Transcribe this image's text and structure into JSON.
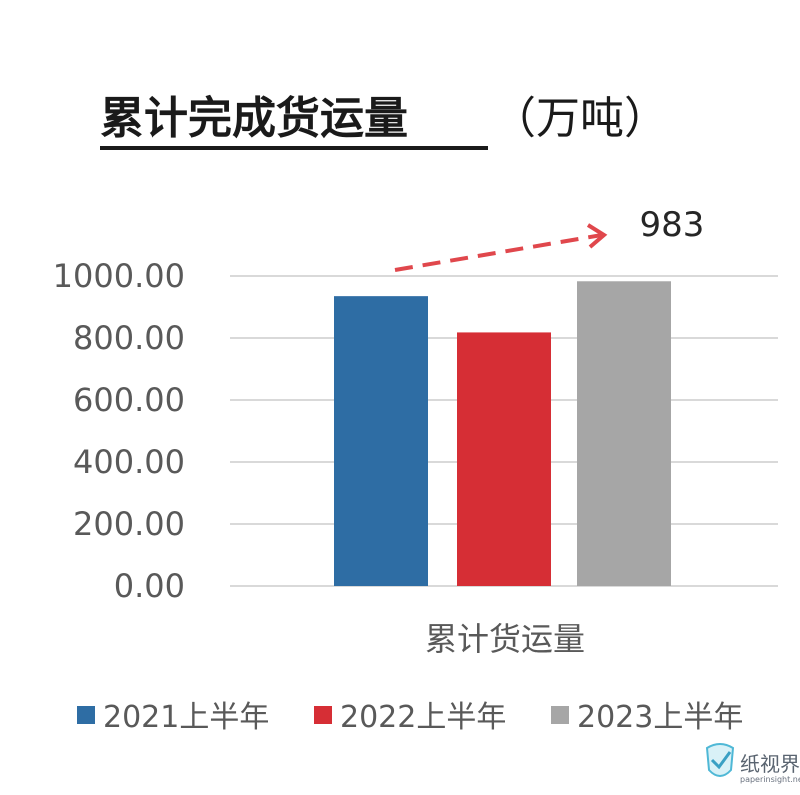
{
  "header": {
    "title": "累计完成货运量",
    "unit": "（万吨）"
  },
  "chart_data": {
    "type": "bar",
    "categories": [
      "累计货运量"
    ],
    "series": [
      {
        "name": "2021上半年",
        "values": [
          935
        ],
        "color": "#2e6da4"
      },
      {
        "name": "2022上半年",
        "values": [
          818
        ],
        "color": "#d62e35"
      },
      {
        "name": "2023上半年",
        "values": [
          983
        ],
        "color": "#a6a6a6"
      }
    ],
    "ylim": [
      0,
      1000
    ],
    "yticks": [
      "0.00",
      "200.00",
      "400.00",
      "600.00",
      "800.00",
      "1000.00"
    ],
    "grid": true,
    "legend_position": "bottom",
    "annotation": {
      "text": "983",
      "arrow": "dashed-up-trend",
      "color": "#e0474c"
    }
  },
  "watermark": {
    "cn": "纸视界",
    "en": "paperinsight.net",
    "icon": "check-shield-icon"
  }
}
